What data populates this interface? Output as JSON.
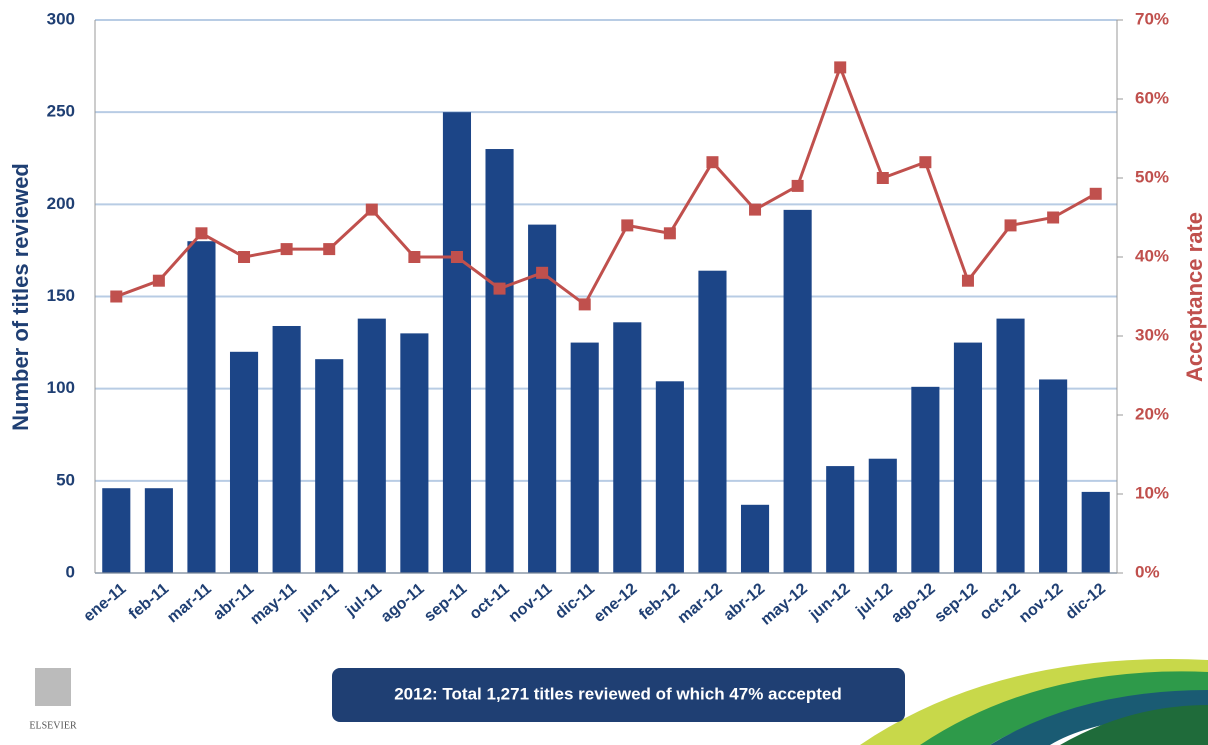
{
  "chart_data": {
    "type": "bar-line",
    "categories": [
      "ene-11",
      "feb-11",
      "mar-11",
      "abr-11",
      "may-11",
      "jun-11",
      "jul-11",
      "ago-11",
      "sep-11",
      "oct-11",
      "nov-11",
      "dic-11",
      "ene-12",
      "feb-12",
      "mar-12",
      "abr-12",
      "may-12",
      "jun-12",
      "jul-12",
      "ago-12",
      "sep-12",
      "oct-12",
      "nov-12",
      "dic-12"
    ],
    "series": [
      {
        "name": "Number of titles reviewed",
        "type": "bar",
        "color": "#1c4587",
        "axis": "y",
        "values": [
          46,
          46,
          180,
          120,
          134,
          116,
          138,
          130,
          250,
          230,
          189,
          125,
          136,
          104,
          164,
          37,
          197,
          58,
          62,
          101,
          125,
          138,
          105,
          44
        ]
      },
      {
        "name": "Acceptance rate",
        "type": "line",
        "color": "#c0504d",
        "axis": "y2",
        "values": [
          35,
          37,
          43,
          40,
          41,
          41,
          46,
          40,
          40,
          36,
          38,
          34,
          44,
          43,
          52,
          46,
          49,
          64,
          50,
          52,
          37,
          44,
          45,
          48
        ]
      }
    ],
    "y_label": "Number of titles reviewed",
    "y2_label": "Acceptance rate",
    "ylim": [
      0,
      300
    ],
    "yticks": [
      0,
      50,
      100,
      150,
      200,
      250,
      300
    ],
    "y2lim": [
      0,
      70
    ],
    "y2ticks": [
      {
        "value": 0,
        "label": "0%"
      },
      {
        "value": 10,
        "label": "10%"
      },
      {
        "value": 20,
        "label": "20%"
      },
      {
        "value": 30,
        "label": "30%"
      },
      {
        "value": 40,
        "label": "40%"
      },
      {
        "value": 50,
        "label": "50%"
      },
      {
        "value": 60,
        "label": "60%"
      },
      {
        "value": 70,
        "label": "70%"
      }
    ],
    "grid": true,
    "annotation": "2012: Total 1,271 titles reviewed of which 47% accepted",
    "logo": "ELSEVIER"
  }
}
